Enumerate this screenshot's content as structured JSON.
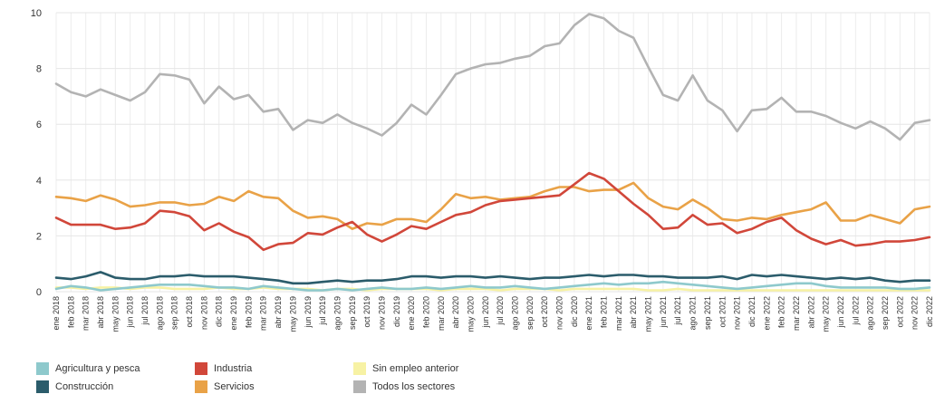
{
  "chart_data": {
    "type": "line",
    "title": "",
    "xlabel": "",
    "ylabel": "",
    "ylim": [
      0,
      10
    ],
    "yticks": [
      0,
      2,
      4,
      6,
      8,
      10
    ],
    "grid": true,
    "legend_position": "bottom",
    "categories": [
      "ene 2018",
      "feb 2018",
      "mar 2018",
      "abr 2018",
      "may 2018",
      "jun 2018",
      "jul 2018",
      "ago 2018",
      "sep 2018",
      "oct 2018",
      "nov 2018",
      "dic 2018",
      "ene 2019",
      "feb 2019",
      "mar 2019",
      "abr 2019",
      "may 2019",
      "jun 2019",
      "jul 2019",
      "ago 2019",
      "sep 2019",
      "oct 2019",
      "nov 2019",
      "dic 2019",
      "ene 2020",
      "feb 2020",
      "mar 2020",
      "abr 2020",
      "may 2020",
      "jun 2020",
      "jul 2020",
      "ago 2020",
      "sep 2020",
      "oct 2020",
      "nov 2020",
      "dic 2020",
      "ene 2021",
      "feb 2021",
      "mar 2021",
      "abr 2021",
      "may 2021",
      "jun 2021",
      "jul 2021",
      "ago 2021",
      "sep 2021",
      "oct 2021",
      "nov 2021",
      "dic 2021",
      "ene 2022",
      "feb 2022",
      "mar 2022",
      "abr 2022",
      "may 2022",
      "jun 2022",
      "jul 2022",
      "ago 2022",
      "sep 2022",
      "oct 2022",
      "nov 2022",
      "dic 2022"
    ],
    "series": [
      {
        "name": "Agricultura y pesca",
        "color": "#8ec9cc",
        "values": [
          0.1,
          0.2,
          0.15,
          0.05,
          0.1,
          0.15,
          0.2,
          0.25,
          0.25,
          0.25,
          0.2,
          0.15,
          0.15,
          0.1,
          0.2,
          0.15,
          0.1,
          0.05,
          0.05,
          0.1,
          0.05,
          0.1,
          0.15,
          0.1,
          0.1,
          0.15,
          0.1,
          0.15,
          0.2,
          0.15,
          0.15,
          0.2,
          0.15,
          0.1,
          0.15,
          0.2,
          0.25,
          0.3,
          0.25,
          0.3,
          0.3,
          0.35,
          0.3,
          0.25,
          0.2,
          0.15,
          0.1,
          0.15,
          0.2,
          0.25,
          0.3,
          0.3,
          0.2,
          0.15,
          0.15,
          0.15,
          0.15,
          0.1,
          0.1,
          0.15
        ]
      },
      {
        "name": "Construcción",
        "color": "#2b5c6b",
        "values": [
          0.5,
          0.45,
          0.55,
          0.7,
          0.5,
          0.45,
          0.45,
          0.55,
          0.55,
          0.6,
          0.55,
          0.55,
          0.55,
          0.5,
          0.45,
          0.4,
          0.3,
          0.3,
          0.35,
          0.4,
          0.35,
          0.4,
          0.4,
          0.45,
          0.55,
          0.55,
          0.5,
          0.55,
          0.55,
          0.5,
          0.55,
          0.5,
          0.45,
          0.5,
          0.5,
          0.55,
          0.6,
          0.55,
          0.6,
          0.6,
          0.55,
          0.55,
          0.5,
          0.5,
          0.5,
          0.55,
          0.45,
          0.6,
          0.55,
          0.6,
          0.55,
          0.5,
          0.45,
          0.5,
          0.45,
          0.5,
          0.4,
          0.35,
          0.4,
          0.4
        ]
      },
      {
        "name": "Industria",
        "color": "#d1473a",
        "values": [
          2.65,
          2.4,
          2.4,
          2.4,
          2.25,
          2.3,
          2.45,
          2.9,
          2.85,
          2.7,
          2.2,
          2.45,
          2.15,
          1.95,
          1.5,
          1.7,
          1.75,
          2.1,
          2.05,
          2.3,
          2.5,
          2.05,
          1.8,
          2.05,
          2.35,
          2.25,
          2.5,
          2.75,
          2.85,
          3.1,
          3.25,
          3.3,
          3.35,
          3.4,
          3.45,
          3.85,
          4.25,
          4.05,
          3.6,
          3.15,
          2.75,
          2.25,
          2.3,
          2.75,
          2.4,
          2.45,
          2.1,
          2.25,
          2.5,
          2.65,
          2.2,
          1.9,
          1.7,
          1.85,
          1.65,
          1.7,
          1.8,
          1.8,
          1.85,
          1.95
        ]
      },
      {
        "name": "Servicios",
        "color": "#e9a247",
        "values": [
          3.4,
          3.35,
          3.25,
          3.45,
          3.3,
          3.05,
          3.1,
          3.2,
          3.2,
          3.1,
          3.15,
          3.4,
          3.25,
          3.6,
          3.4,
          3.35,
          2.9,
          2.65,
          2.7,
          2.6,
          2.25,
          2.45,
          2.4,
          2.6,
          2.6,
          2.5,
          2.95,
          3.5,
          3.35,
          3.4,
          3.3,
          3.35,
          3.4,
          3.6,
          3.75,
          3.75,
          3.6,
          3.65,
          3.65,
          3.9,
          3.35,
          3.05,
          2.95,
          3.3,
          3.0,
          2.6,
          2.55,
          2.65,
          2.6,
          2.75,
          2.85,
          2.95,
          3.2,
          2.55,
          2.55,
          2.75,
          2.6,
          2.45,
          2.95,
          3.05
        ]
      },
      {
        "name": "Sin empleo anterior",
        "color": "#f7f2a4",
        "values": [
          0.15,
          0.15,
          0.1,
          0.15,
          0.15,
          0.1,
          0.15,
          0.15,
          0.1,
          0.1,
          0.1,
          0.15,
          0.1,
          0.1,
          0.15,
          0.1,
          0.1,
          0.1,
          0.05,
          0.1,
          0.1,
          0.05,
          0.1,
          0.1,
          0.1,
          0.1,
          0.05,
          0.1,
          0.1,
          0.1,
          0.05,
          0.1,
          0.1,
          0.1,
          0.05,
          0.1,
          0.1,
          0.1,
          0.1,
          0.1,
          0.05,
          0.05,
          0.1,
          0.05,
          0.05,
          0.05,
          0.05,
          0.05,
          0.05,
          0.05,
          0.05,
          0.05,
          0.05,
          0.05,
          0.05,
          0.05,
          0.05,
          0.05,
          0.05,
          0.05
        ]
      },
      {
        "name": "Todos los sectores",
        "color": "#b3b3b3",
        "values": [
          7.45,
          7.15,
          7.0,
          7.25,
          7.05,
          6.85,
          7.15,
          7.8,
          7.75,
          7.6,
          6.75,
          7.35,
          6.9,
          7.05,
          6.45,
          6.55,
          5.8,
          6.15,
          6.05,
          6.35,
          6.05,
          5.85,
          5.6,
          6.05,
          6.7,
          6.35,
          7.05,
          7.8,
          8.0,
          8.15,
          8.2,
          8.35,
          8.45,
          8.8,
          8.9,
          9.55,
          9.95,
          9.8,
          9.35,
          9.1,
          8.05,
          7.05,
          6.85,
          7.75,
          6.85,
          6.5,
          5.75,
          6.5,
          6.55,
          6.95,
          6.45,
          6.45,
          6.3,
          6.05,
          5.85,
          6.1,
          5.85,
          5.45,
          6.05,
          6.15
        ]
      }
    ]
  }
}
